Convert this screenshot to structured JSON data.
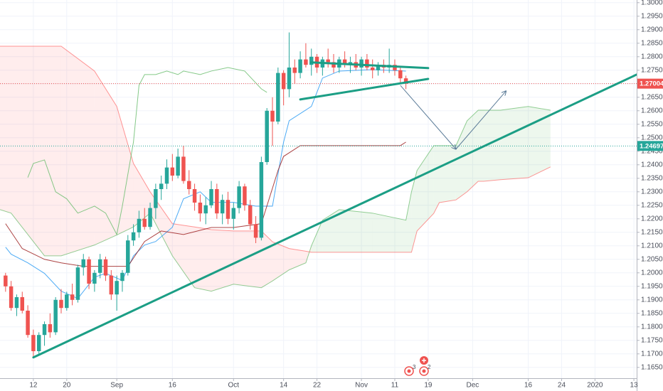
{
  "chart_data": {
    "type": "candlestick",
    "up_color": "#26a69a",
    "down_color": "#ef5350",
    "grid": true,
    "xlim": [
      -1,
      113.5
    ],
    "ylim": [
      1.161,
      1.301
    ],
    "xticks": [
      {
        "value": 5,
        "label": "12"
      },
      {
        "value": 11,
        "label": "20"
      },
      {
        "value": 20,
        "label": "Sep"
      },
      {
        "value": 30,
        "label": "16"
      },
      {
        "value": 41,
        "label": "Oct"
      },
      {
        "value": 50,
        "label": "14"
      },
      {
        "value": 56,
        "label": "22"
      },
      {
        "value": 64,
        "label": "Nov"
      },
      {
        "value": 70,
        "label": "11"
      },
      {
        "value": 76,
        "label": "19"
      },
      {
        "value": 84,
        "label": "Dec"
      },
      {
        "value": 94,
        "label": "16"
      },
      {
        "value": 100,
        "label": "24"
      },
      {
        "value": 106,
        "label": "2020"
      },
      {
        "value": 113,
        "label": "13"
      }
    ],
    "yticks": [
      {
        "value": 1.165,
        "label": "1.16500"
      },
      {
        "value": 1.17,
        "label": "1.17000"
      },
      {
        "value": 1.175,
        "label": "1.17500"
      },
      {
        "value": 1.18,
        "label": "1.18000"
      },
      {
        "value": 1.185,
        "label": "1.18500"
      },
      {
        "value": 1.19,
        "label": "1.19000"
      },
      {
        "value": 1.195,
        "label": "1.19500"
      },
      {
        "value": 1.2,
        "label": "1.20000"
      },
      {
        "value": 1.205,
        "label": "1.20500"
      },
      {
        "value": 1.21,
        "label": "1.21000"
      },
      {
        "value": 1.215,
        "label": "1.21500"
      },
      {
        "value": 1.22,
        "label": "1.22000"
      },
      {
        "value": 1.225,
        "label": "1.22500"
      },
      {
        "value": 1.23,
        "label": "1.23000"
      },
      {
        "value": 1.235,
        "label": "1.23500"
      },
      {
        "value": 1.24,
        "label": "1.24000"
      },
      {
        "value": 1.245,
        "label": "1.24500"
      },
      {
        "value": 1.25,
        "label": "1.25000"
      },
      {
        "value": 1.255,
        "label": "1.25500"
      },
      {
        "value": 1.26,
        "label": "1.26000"
      },
      {
        "value": 1.265,
        "label": "1.26500"
      },
      {
        "value": 1.27,
        "label": "1.27000"
      },
      {
        "value": 1.275,
        "label": "1.27500"
      },
      {
        "value": 1.28,
        "label": "1.28000"
      },
      {
        "value": 1.285,
        "label": "1.28500"
      },
      {
        "value": 1.29,
        "label": "1.29000"
      },
      {
        "value": 1.295,
        "label": "1.29500"
      },
      {
        "value": 1.3,
        "label": "1.30000"
      }
    ],
    "x": [
      0,
      1,
      2,
      3,
      4,
      5,
      6,
      7,
      8,
      9,
      10,
      11,
      12,
      13,
      14,
      15,
      16,
      17,
      18,
      19,
      20,
      21,
      22,
      23,
      24,
      25,
      26,
      27,
      28,
      29,
      30,
      31,
      32,
      33,
      34,
      35,
      36,
      37,
      38,
      39,
      40,
      41,
      42,
      43,
      44,
      45,
      46,
      47,
      48,
      49,
      50,
      51,
      52,
      53,
      54,
      55,
      56,
      57,
      58,
      59,
      60,
      61,
      62,
      63,
      64,
      65,
      66,
      67,
      68,
      69,
      70,
      71,
      72
    ],
    "open": [
      1.199,
      1.195,
      1.187,
      1.191,
      1.186,
      1.177,
      1.171,
      1.177,
      1.181,
      1.178,
      1.19,
      1.187,
      1.192,
      1.19,
      1.202,
      1.205,
      1.196,
      1.2,
      1.205,
      1.199,
      1.192,
      1.197,
      1.2,
      1.212,
      1.215,
      1.22,
      1.217,
      1.224,
      1.231,
      1.233,
      1.239,
      1.236,
      1.243,
      1.234,
      1.231,
      1.226,
      1.222,
      1.225,
      1.231,
      1.222,
      1.227,
      1.22,
      1.224,
      1.232,
      1.225,
      1.218,
      1.213,
      1.241,
      1.26,
      1.256,
      1.274,
      1.268,
      1.276,
      1.274,
      1.279,
      1.277,
      1.28,
      1.276,
      1.279,
      1.278,
      1.276,
      1.279,
      1.277,
      1.278,
      1.276,
      1.279,
      1.276,
      1.275,
      1.277,
      1.276,
      1.277,
      1.275,
      1.272
    ],
    "high": [
      1.2,
      1.197,
      1.192,
      1.193,
      1.188,
      1.179,
      1.178,
      1.182,
      1.185,
      1.191,
      1.194,
      1.193,
      1.196,
      1.203,
      1.207,
      1.206,
      1.201,
      1.207,
      1.206,
      1.201,
      1.199,
      1.201,
      1.214,
      1.218,
      1.223,
      1.224,
      1.226,
      1.233,
      1.236,
      1.242,
      1.244,
      1.246,
      1.247,
      1.238,
      1.233,
      1.229,
      1.228,
      1.234,
      1.233,
      1.229,
      1.23,
      1.226,
      1.234,
      1.233,
      1.227,
      1.221,
      1.243,
      1.261,
      1.265,
      1.276,
      1.275,
      1.289,
      1.279,
      1.282,
      1.285,
      1.283,
      1.281,
      1.28,
      1.283,
      1.281,
      1.28,
      1.282,
      1.28,
      1.281,
      1.28,
      1.281,
      1.279,
      1.278,
      1.279,
      1.283,
      1.279,
      1.276,
      1.273
    ],
    "low": [
      1.193,
      1.186,
      1.184,
      1.185,
      1.176,
      1.169,
      1.17,
      1.173,
      1.176,
      1.177,
      1.185,
      1.186,
      1.188,
      1.189,
      1.199,
      1.194,
      1.193,
      1.198,
      1.197,
      1.19,
      1.186,
      1.193,
      1.199,
      1.21,
      1.213,
      1.216,
      1.216,
      1.22,
      1.227,
      1.231,
      1.234,
      1.235,
      1.233,
      1.229,
      1.223,
      1.219,
      1.218,
      1.224,
      1.22,
      1.218,
      1.218,
      1.216,
      1.222,
      1.223,
      1.216,
      1.211,
      1.212,
      1.24,
      1.247,
      1.255,
      1.262,
      1.265,
      1.27,
      1.272,
      1.276,
      1.273,
      1.274,
      1.273,
      1.276,
      1.274,
      1.274,
      1.276,
      1.274,
      1.275,
      1.273,
      1.275,
      1.272,
      1.273,
      1.274,
      1.274,
      1.273,
      1.27,
      1.268
    ],
    "close": [
      1.195,
      1.187,
      1.191,
      1.186,
      1.177,
      1.171,
      1.177,
      1.181,
      1.178,
      1.19,
      1.187,
      1.192,
      1.19,
      1.202,
      1.205,
      1.196,
      1.2,
      1.205,
      1.199,
      1.192,
      1.197,
      1.2,
      1.212,
      1.215,
      1.22,
      1.217,
      1.224,
      1.231,
      1.233,
      1.239,
      1.236,
      1.243,
      1.234,
      1.231,
      1.226,
      1.222,
      1.225,
      1.231,
      1.222,
      1.227,
      1.22,
      1.224,
      1.232,
      1.225,
      1.218,
      1.213,
      1.241,
      1.26,
      1.256,
      1.274,
      1.268,
      1.276,
      1.274,
      1.279,
      1.277,
      1.28,
      1.276,
      1.279,
      1.278,
      1.276,
      1.279,
      1.277,
      1.278,
      1.276,
      1.279,
      1.276,
      1.275,
      1.277,
      1.276,
      1.277,
      1.275,
      1.272,
      1.27
    ],
    "cloud": {
      "up_color": "#4caf50",
      "down_color": "#ff5252",
      "x": [
        -1,
        1,
        4,
        7,
        10,
        16,
        20,
        23,
        26,
        30,
        34,
        37,
        41,
        46,
        48,
        51,
        54,
        55,
        57,
        60,
        66,
        72,
        73,
        74,
        77,
        78,
        81,
        83,
        85,
        86,
        89,
        94,
        98
      ],
      "span_a": [
        1.2234,
        1.2221,
        1.2142,
        1.2063,
        1.2063,
        1.2103,
        1.214,
        1.217,
        1.2221,
        1.2063,
        1.1945,
        1.1932,
        1.1958,
        1.1945,
        1.197,
        1.2011,
        1.2037,
        1.21,
        1.2195,
        1.2234,
        1.2221,
        1.2195,
        1.23,
        1.2379,
        1.2471,
        1.2471,
        1.2471,
        1.2563,
        1.2602,
        1.2602,
        1.2602,
        1.2616,
        1.2602
      ],
      "span_b": [
        1.2839,
        1.2839,
        1.2839,
        1.2839,
        1.2839,
        1.2747,
        1.2616,
        1.2405,
        1.23,
        1.2182,
        1.217,
        1.216,
        1.2155,
        1.2155,
        1.2115,
        1.209,
        1.208,
        1.2076,
        1.2076,
        1.2076,
        1.2076,
        1.2076,
        1.2076,
        1.2155,
        1.222,
        1.226,
        1.227,
        1.23,
        1.2339,
        1.2339,
        1.2345,
        1.2352,
        1.2392
      ]
    },
    "lines": [
      {
        "color": "#2196f3",
        "x": [
          0,
          1,
          4,
          7,
          10,
          13,
          16,
          18,
          21,
          23,
          25,
          27,
          30,
          32,
          35,
          37,
          41,
          45,
          48,
          50,
          51,
          55,
          57,
          60,
          66,
          72
        ],
        "values": [
          1.2095,
          1.2069,
          1.2037,
          1.1998,
          1.1932,
          1.1905,
          1.1984,
          1.1998,
          1.1972,
          1.2063,
          1.2103,
          1.2116,
          1.2169,
          1.2274,
          1.23,
          1.2261,
          1.2261,
          1.2247,
          1.2247,
          1.2484,
          1.2563,
          1.2616,
          1.2721,
          1.2747,
          1.2752,
          1.2747
        ]
      },
      {
        "color": "#991515",
        "x": [
          0,
          3,
          7,
          10,
          14,
          18,
          22,
          25,
          28,
          32,
          37,
          41,
          46,
          49,
          50,
          53,
          55,
          60,
          71,
          72
        ],
        "values": [
          1.2182,
          1.209,
          1.205,
          1.2037,
          1.2024,
          1.2024,
          1.2024,
          1.2116,
          1.2155,
          1.2142,
          1.2168,
          1.2168,
          1.2182,
          1.2379,
          1.2431,
          1.2471,
          1.2471,
          1.2471,
          1.2471,
          1.2484
        ]
      },
      {
        "color": "#66bb6a",
        "x": [
          4,
          5,
          7,
          9,
          11,
          13,
          16,
          18,
          20,
          21,
          23,
          24,
          25,
          27,
          29,
          31,
          32,
          35,
          37,
          40,
          43,
          46,
          47
        ],
        "values": [
          1.2353,
          1.2405,
          1.2418,
          1.23,
          1.2274,
          1.2221,
          1.2247,
          1.2221,
          1.2142,
          1.2247,
          1.2484,
          1.2694,
          1.2734,
          1.2734,
          1.2747,
          1.2734,
          1.2747,
          1.2734,
          1.2747,
          1.276,
          1.2747,
          1.2681,
          1.2668
        ]
      }
    ],
    "drawings": [
      {
        "color": "#1b9e85",
        "width": 3,
        "arrow": false,
        "x": [
          5,
          113.5
        ],
        "values": [
          1.1687,
          1.2734
        ]
      },
      {
        "color": "#1b9e85",
        "width": 3,
        "arrow": false,
        "x": [
          55,
          76
        ],
        "values": [
          1.2779,
          1.2758
        ]
      },
      {
        "color": "#1b9e85",
        "width": 3,
        "arrow": false,
        "x": [
          53,
          76
        ],
        "values": [
          1.2642,
          1.2718
        ]
      },
      {
        "color": "#5d7d99",
        "width": 1,
        "arrow": true,
        "x": [
          71,
          81
        ],
        "values": [
          1.2694,
          1.2458
        ]
      },
      {
        "color": "#5d7d99",
        "width": 1,
        "arrow": true,
        "x": [
          81,
          90
        ],
        "values": [
          1.2458,
          1.2673
        ]
      }
    ],
    "price_lines": [
      {
        "value": 1.27004,
        "color": "#ef5350"
      },
      {
        "value": 1.24697,
        "color": "#26a69a"
      }
    ],
    "event_labels": [
      "3",
      "2"
    ]
  }
}
